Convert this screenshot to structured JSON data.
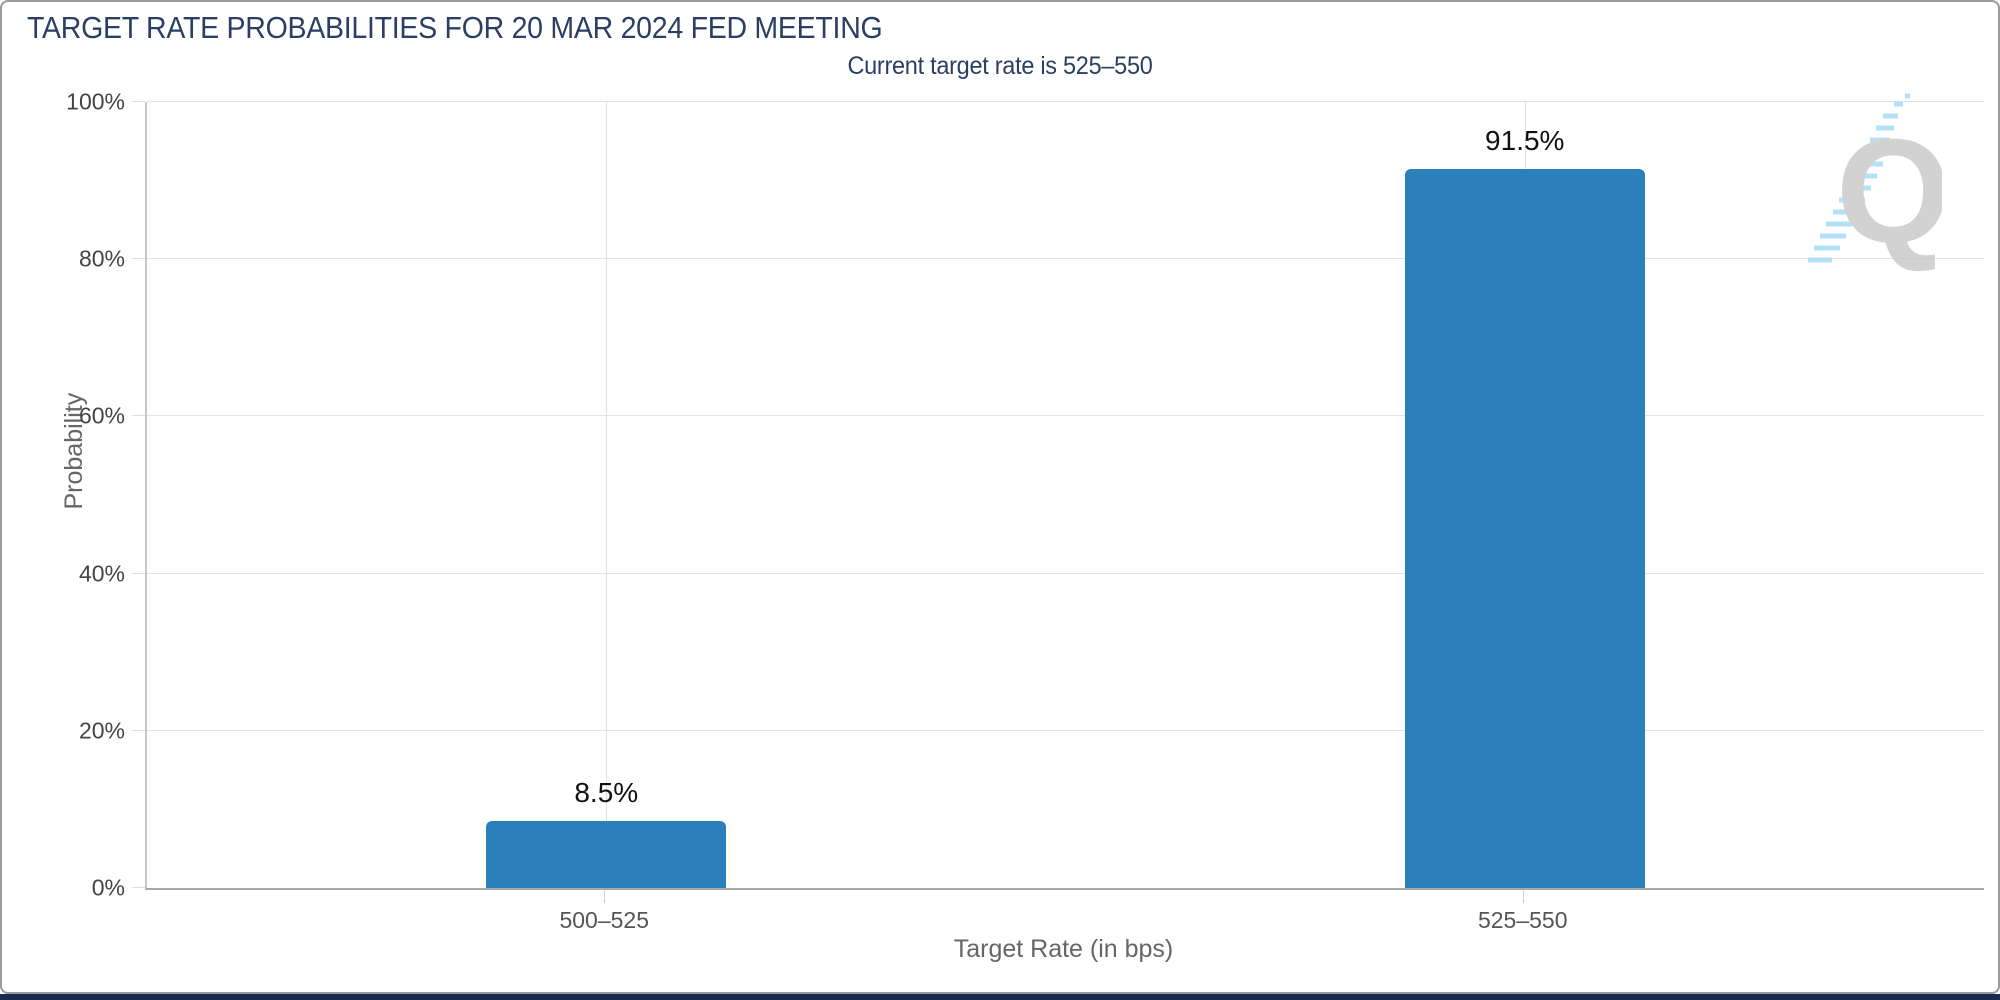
{
  "chart_data": {
    "type": "bar",
    "title": "TARGET RATE PROBABILITIES FOR 20 MAR 2024 FED MEETING",
    "subtitle": "Current target rate is 525–550",
    "categories": [
      "500–525",
      "525–550"
    ],
    "values": [
      8.5,
      91.5
    ],
    "value_labels": [
      "8.5%",
      "91.5%"
    ],
    "xlabel": "Target Rate (in bps)",
    "ylabel": "Probability",
    "ylim": [
      0,
      100
    ],
    "yticks": [
      {
        "value": 0,
        "label": "0%"
      },
      {
        "value": 20,
        "label": "20%"
      },
      {
        "value": 40,
        "label": "40%"
      },
      {
        "value": 60,
        "label": "60%"
      },
      {
        "value": 80,
        "label": "80%"
      },
      {
        "value": 100,
        "label": "100%"
      }
    ],
    "grid": true,
    "legend": null,
    "bar_color": "#2c80b9",
    "title_color": "#2a3f63"
  },
  "watermark": {
    "letter": "Q",
    "letter_color": "#cbcbcb",
    "dash_color": "#a8dcf6"
  }
}
